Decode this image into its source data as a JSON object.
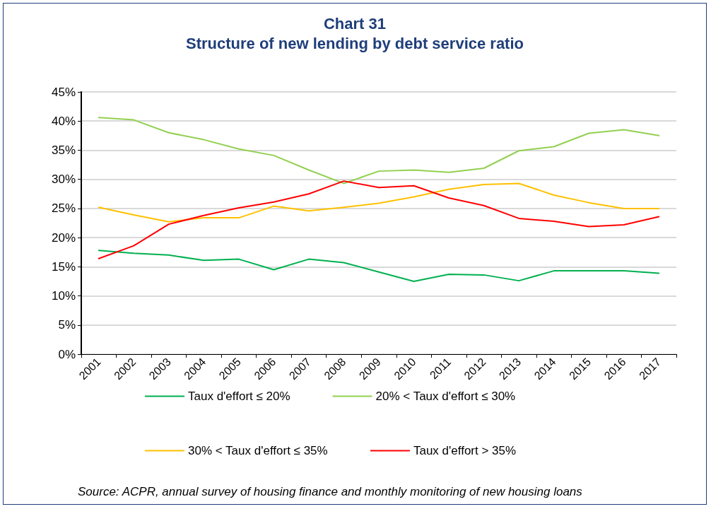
{
  "chart_data": {
    "type": "line",
    "title": "Chart 31",
    "subtitle": "Structure of new lending by debt service ratio",
    "categories": [
      "2001",
      "2002",
      "2003",
      "2004",
      "2005",
      "2006",
      "2007",
      "2008",
      "2009",
      "2010",
      "2011",
      "2012",
      "2013",
      "2014",
      "2015",
      "2016",
      "2017"
    ],
    "series": [
      {
        "name": "Taux d'effort ≤ 20%",
        "color": "#00b050",
        "values": [
          17.8,
          17.3,
          17.0,
          16.1,
          16.3,
          14.5,
          16.3,
          15.7,
          14.1,
          12.5,
          13.7,
          13.6,
          12.6,
          14.3,
          14.3,
          14.3,
          13.9
        ]
      },
      {
        "name": "20% < Taux d'effort ≤ 30%",
        "color": "#92d050",
        "values": [
          40.6,
          40.2,
          38.0,
          36.8,
          35.2,
          34.1,
          31.6,
          29.3,
          31.4,
          31.6,
          31.2,
          31.9,
          34.9,
          35.6,
          37.9,
          38.5,
          37.5
        ]
      },
      {
        "name": "30% < Taux d'effort ≤ 35%",
        "color": "#ffc000",
        "values": [
          25.2,
          23.9,
          22.7,
          23.4,
          23.4,
          25.4,
          24.6,
          25.2,
          25.9,
          27.0,
          28.3,
          29.1,
          29.3,
          27.3,
          26.0,
          25.0,
          25.0
        ]
      },
      {
        "name": "Taux d'effort > 35%",
        "color": "#ff0000",
        "values": [
          16.4,
          18.6,
          22.3,
          23.8,
          25.1,
          26.1,
          27.5,
          29.7,
          28.6,
          28.9,
          26.8,
          25.5,
          23.3,
          22.8,
          21.9,
          22.2,
          23.6
        ]
      }
    ],
    "ylim": [
      0,
      45
    ],
    "yticks": [
      {
        "value": 0,
        "label": "0%"
      },
      {
        "value": 5,
        "label": "5%"
      },
      {
        "value": 10,
        "label": "10%"
      },
      {
        "value": 15,
        "label": "15%"
      },
      {
        "value": 20,
        "label": "20%"
      },
      {
        "value": 25,
        "label": "25%"
      },
      {
        "value": 30,
        "label": "30%"
      },
      {
        "value": 35,
        "label": "35%"
      },
      {
        "value": 40,
        "label": "40%"
      },
      {
        "value": 45,
        "label": "45%"
      }
    ],
    "grid": "y",
    "legend": "bottom",
    "marker": "none",
    "line_style": "solid",
    "annotations": [
      "Source: ACPR, annual survey of housing finance and monthly monitoring of new housing loans"
    ]
  }
}
